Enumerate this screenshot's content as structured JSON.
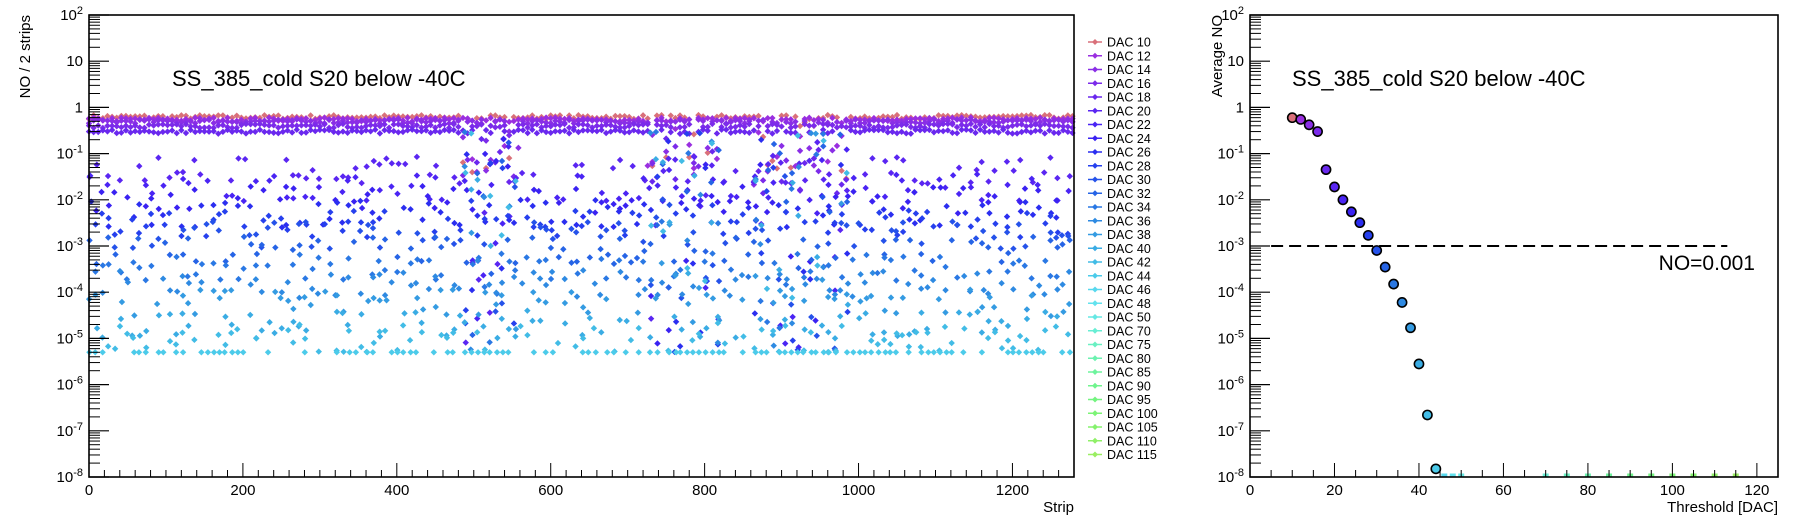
{
  "chart_data": [
    {
      "type": "scatter",
      "title": "SS_385_cold S20 below -40C",
      "xlabel": "Strip",
      "ylabel": "NO / 2 strips",
      "xlim": [
        0,
        1280
      ],
      "ylim": [
        1e-08,
        100
      ],
      "yscale": "log",
      "x_ticks": [
        "0",
        "200",
        "400",
        "600",
        "800",
        "1000",
        "1200"
      ],
      "y_ticks": [
        "10^-8",
        "10^-7",
        "10^-6",
        "10^-5",
        "10^-4",
        "10^-3",
        "10^-2",
        "10^-1",
        "1",
        "10",
        "10^2"
      ],
      "legend_position": "right",
      "series": [
        {
          "name": "DAC 10",
          "color": "#d9707a",
          "typical_value": 0.62
        },
        {
          "name": "DAC 12",
          "color": "#9a2fe0",
          "typical_value": 0.55
        },
        {
          "name": "DAC 14",
          "color": "#8a2ee6",
          "typical_value": 0.5
        },
        {
          "name": "DAC 16",
          "color": "#7b2bea",
          "typical_value": 0.4
        },
        {
          "name": "DAC 18",
          "color": "#6a28ee",
          "typical_value": 0.3
        },
        {
          "name": "DAC 20",
          "color": "#5a26f2",
          "typical_value": 0.045
        },
        {
          "name": "DAC 22",
          "color": "#4a24f4",
          "typical_value": 0.018
        },
        {
          "name": "DAC 24",
          "color": "#3a22f2",
          "typical_value": 0.01
        },
        {
          "name": "DAC 26",
          "color": "#2b2ef0",
          "typical_value": 0.005
        },
        {
          "name": "DAC 28",
          "color": "#2640ee",
          "typical_value": 0.003
        },
        {
          "name": "DAC 30",
          "color": "#2552ea",
          "typical_value": 0.0017
        },
        {
          "name": "DAC 32",
          "color": "#2664e6",
          "typical_value": 0.0008
        },
        {
          "name": "DAC 34",
          "color": "#2a78e4",
          "typical_value": 0.00035
        },
        {
          "name": "DAC 36",
          "color": "#2e8ae2",
          "typical_value": 0.00015
        },
        {
          "name": "DAC 38",
          "color": "#349be2",
          "typical_value": 6e-05
        },
        {
          "name": "DAC 40",
          "color": "#3aace4",
          "typical_value": 2e-05
        },
        {
          "name": "DAC 42",
          "color": "#42bce6",
          "typical_value": 1e-05
        },
        {
          "name": "DAC 44",
          "color": "#4ccbea",
          "typical_value": 5e-06
        },
        {
          "name": "DAC 46",
          "color": "#58d8ee",
          "typical_value": null
        },
        {
          "name": "DAC 48",
          "color": "#62e2ee",
          "typical_value": null
        },
        {
          "name": "DAC 50",
          "color": "#66e8e4",
          "typical_value": null
        },
        {
          "name": "DAC 70",
          "color": "#68eed4",
          "typical_value": null
        },
        {
          "name": "DAC 75",
          "color": "#6af0c2",
          "typical_value": null
        },
        {
          "name": "DAC 80",
          "color": "#6cf2b0",
          "typical_value": null
        },
        {
          "name": "DAC 85",
          "color": "#6ef49e",
          "typical_value": null
        },
        {
          "name": "DAC 90",
          "color": "#70f48e",
          "typical_value": null
        },
        {
          "name": "DAC 95",
          "color": "#74f480",
          "typical_value": null
        },
        {
          "name": "DAC 100",
          "color": "#7cf476",
          "typical_value": null
        },
        {
          "name": "DAC 105",
          "color": "#86f26e",
          "typical_value": null
        },
        {
          "name": "DAC 110",
          "color": "#90f068",
          "typical_value": null
        },
        {
          "name": "DAC 115",
          "color": "#9aee62",
          "typical_value": null
        }
      ]
    },
    {
      "type": "scatter",
      "title": "SS_385_cold S20 below -40C",
      "xlabel": "Threshold [DAC]",
      "ylabel": "Average NO",
      "xlim": [
        0,
        125
      ],
      "ylim": [
        1e-08,
        100
      ],
      "yscale": "log",
      "x_ticks": [
        "0",
        "20",
        "40",
        "60",
        "80",
        "100",
        "120"
      ],
      "y_ticks": [
        "10^-8",
        "10^-7",
        "10^-6",
        "10^-5",
        "10^-4",
        "10^-3",
        "10^-2",
        "10^-1",
        "1",
        "10",
        "10^2"
      ],
      "reference_line": {
        "y": 0.001,
        "x_range": [
          5,
          113
        ],
        "style": "dashed",
        "label": "NO=0.001"
      },
      "points": [
        {
          "x": 10,
          "y": 0.6,
          "color": "#d9707a"
        },
        {
          "x": 12,
          "y": 0.55,
          "color": "#9a2fe0"
        },
        {
          "x": 14,
          "y": 0.42,
          "color": "#8a2ee6"
        },
        {
          "x": 16,
          "y": 0.3,
          "color": "#7b2bea"
        },
        {
          "x": 18,
          "y": 0.045,
          "color": "#6a28ee"
        },
        {
          "x": 20,
          "y": 0.019,
          "color": "#5a26f2"
        },
        {
          "x": 22,
          "y": 0.01,
          "color": "#4a24f4"
        },
        {
          "x": 24,
          "y": 0.0055,
          "color": "#3a22f2"
        },
        {
          "x": 26,
          "y": 0.0032,
          "color": "#2b2ef0"
        },
        {
          "x": 28,
          "y": 0.0017,
          "color": "#2640ee"
        },
        {
          "x": 30,
          "y": 0.0008,
          "color": "#2552ea"
        },
        {
          "x": 32,
          "y": 0.00035,
          "color": "#2664e6"
        },
        {
          "x": 34,
          "y": 0.00015,
          "color": "#2a78e4"
        },
        {
          "x": 36,
          "y": 6e-05,
          "color": "#2e8ae2"
        },
        {
          "x": 38,
          "y": 1.7e-05,
          "color": "#349be2"
        },
        {
          "x": 40,
          "y": 2.8e-06,
          "color": "#3aace4"
        },
        {
          "x": 42,
          "y": 2.2e-07,
          "color": "#42bce6"
        },
        {
          "x": 44,
          "y": 1.5e-08,
          "color": "#4ccbea"
        },
        {
          "x": 46,
          "y": 1e-08,
          "color": "#58d8ee"
        },
        {
          "x": 48,
          "y": 1e-08,
          "color": "#62e2ee"
        },
        {
          "x": 50,
          "y": 1e-08,
          "color": "#66e8e4"
        },
        {
          "x": 70,
          "y": 1e-08,
          "color": "#68eed4"
        },
        {
          "x": 75,
          "y": 1e-08,
          "color": "#6af0c2"
        },
        {
          "x": 80,
          "y": 1e-08,
          "color": "#6cf2b0"
        },
        {
          "x": 85,
          "y": 1e-08,
          "color": "#6ef49e"
        },
        {
          "x": 90,
          "y": 1e-08,
          "color": "#70f48e"
        },
        {
          "x": 95,
          "y": 1e-08,
          "color": "#74f480"
        },
        {
          "x": 100,
          "y": 1e-08,
          "color": "#7cf476"
        },
        {
          "x": 105,
          "y": 1e-08,
          "color": "#86f26e"
        },
        {
          "x": 110,
          "y": 1e-08,
          "color": "#90f068"
        },
        {
          "x": 115,
          "y": 1e-08,
          "color": "#9aee62"
        }
      ]
    }
  ]
}
